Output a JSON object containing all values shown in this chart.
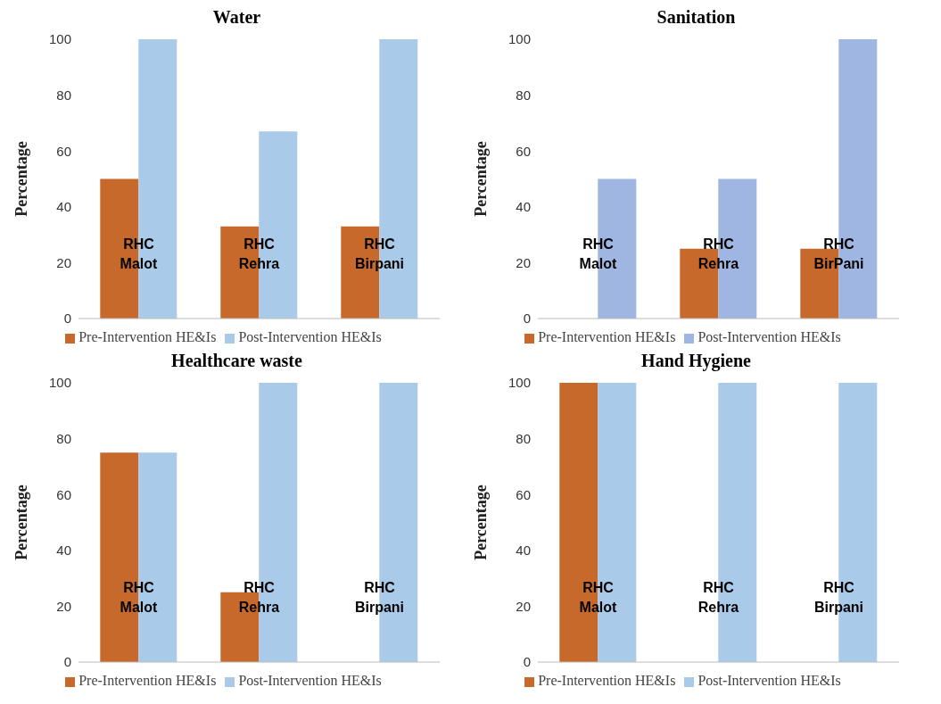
{
  "chart_data": [
    {
      "type": "bar",
      "title": "Water",
      "ylabel": "Percentage",
      "categories": [
        "RHC Malot",
        "RHC Rehra",
        "RHC Birpani"
      ],
      "ylim": [
        0,
        100
      ],
      "yticks": [
        0,
        20,
        40,
        60,
        80,
        100
      ],
      "grid": false,
      "legend": "bottom",
      "series": [
        {
          "name": "Pre-Intervention HE&Is",
          "color": "#c8692c",
          "values": [
            50,
            33,
            33
          ]
        },
        {
          "name": "Post-Intervention HE&Is",
          "color": "#a9cbe9",
          "values": [
            100,
            67,
            100
          ]
        }
      ]
    },
    {
      "type": "bar",
      "title": "Sanitation",
      "ylabel": "Percentage",
      "categories": [
        "RHC Malot",
        "RHC Rehra",
        "RHC BirPani"
      ],
      "ylim": [
        0,
        100
      ],
      "yticks": [
        0,
        20,
        40,
        60,
        80,
        100
      ],
      "grid": false,
      "legend": "bottom",
      "series": [
        {
          "name": "Pre-Intervention HE&Is",
          "color": "#c8692c",
          "values": [
            0,
            25,
            25
          ]
        },
        {
          "name": "Post-Intervention HE&Is",
          "color": "#9fb6e2",
          "values": [
            50,
            50,
            100
          ]
        }
      ]
    },
    {
      "type": "bar",
      "title": "Healthcare waste",
      "ylabel": "Percentage",
      "categories": [
        "RHC Malot",
        "RHC Rehra",
        "RHC Birpani"
      ],
      "ylim": [
        0,
        100
      ],
      "yticks": [
        0,
        20,
        40,
        60,
        80,
        100
      ],
      "grid": false,
      "legend": "bottom",
      "series": [
        {
          "name": "Pre-Intervention HE&Is",
          "color": "#c8692c",
          "values": [
            75,
            25,
            0
          ]
        },
        {
          "name": "Post-Intervention HE&Is",
          "color": "#a9cbe9",
          "values": [
            75,
            100,
            100
          ]
        }
      ]
    },
    {
      "type": "bar",
      "title": "Hand Hygiene",
      "ylabel": "Percentage",
      "categories": [
        "RHC Malot",
        "RHC Rehra",
        "RHC Birpani"
      ],
      "ylim": [
        0,
        100
      ],
      "yticks": [
        0,
        20,
        40,
        60,
        80,
        100
      ],
      "grid": false,
      "legend": "bottom",
      "series": [
        {
          "name": "Pre-Intervention HE&Is",
          "color": "#c8692c",
          "values": [
            100,
            0,
            0
          ]
        },
        {
          "name": "Post-Intervention HE&Is",
          "color": "#a9cbe9",
          "values": [
            100,
            100,
            100
          ]
        }
      ]
    }
  ]
}
